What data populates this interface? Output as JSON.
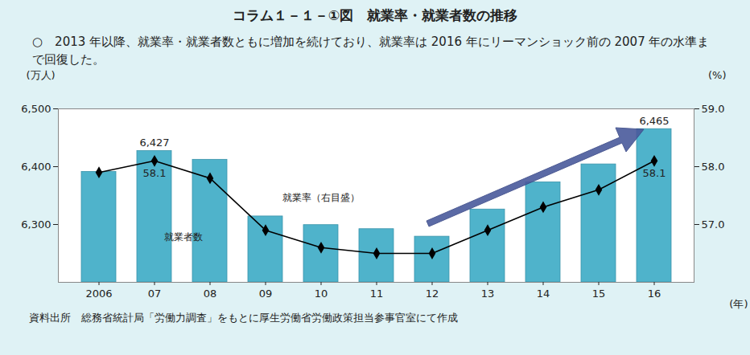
{
  "chart_data": {
    "type": "bar",
    "title": "コラム１－１－①図　就業率・就業者数の推移",
    "subtitle": "○　2013 年以降、就業率・就業者数ともに増加を続けており、就業率は 2016 年にリーマンショック前の 2007 年の水準まで回復した。",
    "source": "資料出所　総務省統計局「労働力調査」をもとに厚生労働省労働政策担当参事官室にて作成",
    "x_label": "(年)",
    "y_label": "(万人)",
    "y2_label": "(%)",
    "categories": [
      "2006",
      "07",
      "08",
      "09",
      "10",
      "11",
      "12",
      "13",
      "14",
      "15",
      "16"
    ],
    "series": [
      {
        "name": "就業者数",
        "type": "bar",
        "color": "#4fb3cb",
        "values": [
          6391,
          6427,
          6412,
          6314,
          6299,
          6292,
          6279,
          6326,
          6373,
          6404,
          6465
        ],
        "value_labels": [
          null,
          "6,427",
          null,
          null,
          null,
          null,
          null,
          null,
          null,
          null,
          "6,465"
        ]
      },
      {
        "name": "就業率（右目盛）",
        "type": "line",
        "axis": "y2",
        "color": "#000000",
        "marker": "diamond",
        "values": [
          57.9,
          58.1,
          57.8,
          56.9,
          56.6,
          56.5,
          56.5,
          56.9,
          57.3,
          57.6,
          58.1
        ],
        "value_labels": [
          null,
          "58.1",
          null,
          null,
          null,
          null,
          null,
          null,
          null,
          null,
          "58.1"
        ]
      }
    ],
    "ylim": [
      6200,
      6500
    ],
    "yticks": [
      {
        "value": 6300,
        "label": "6,300"
      },
      {
        "value": 6400,
        "label": "6,400"
      },
      {
        "value": 6500,
        "label": "6,500"
      }
    ],
    "y2lim": [
      56.0,
      59.0
    ],
    "y2ticks": [
      {
        "value": 57,
        "label": "57.0"
      },
      {
        "value": 58,
        "label": "58.0"
      },
      {
        "value": 59,
        "label": "59.0"
      }
    ],
    "grid": false
  }
}
